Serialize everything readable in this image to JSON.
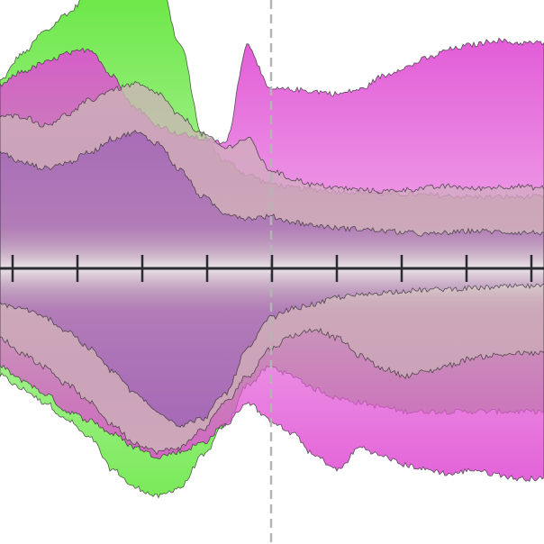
{
  "chart_data": {
    "type": "area",
    "title": "",
    "xlabel": "",
    "ylabel": "",
    "x": [
      0,
      25,
      50,
      75,
      100,
      125,
      150,
      175,
      200,
      225,
      250,
      275,
      300,
      325,
      350,
      375,
      400,
      425,
      450,
      475,
      500,
      525,
      550,
      575,
      600
    ],
    "xlim": [
      0,
      604
    ],
    "ylim": [
      -300,
      300
    ],
    "grid": false,
    "legend": "none",
    "marker_x": 301,
    "x_ticks": [
      14,
      86,
      158,
      230,
      302,
      374,
      446,
      518,
      590
    ],
    "series": [
      {
        "color": "#9b59b6",
        "upper": [
          130,
          118,
          112,
          118,
          130,
          145,
          152,
          140,
          110,
          80,
          62,
          56,
          58,
          52,
          48,
          45,
          44,
          42,
          40,
          38,
          40,
          42,
          41,
          40,
          40
        ],
        "lower": [
          -40,
          -45,
          -55,
          -70,
          -90,
          -115,
          -140,
          -160,
          -175,
          -168,
          -140,
          -90,
          -55,
          -45,
          -40,
          -32,
          -30,
          -27,
          -25,
          -24,
          -23,
          -22,
          -21,
          -20,
          -20
        ]
      },
      {
        "color": "#cdb4b8",
        "upper": [
          170,
          170,
          160,
          172,
          188,
          200,
          206,
          196,
          170,
          150,
          135,
          145,
          110,
          100,
          93,
          90,
          88,
          86,
          88,
          90,
          92,
          89,
          91,
          92,
          90
        ],
        "lower": [
          -78,
          -95,
          -110,
          -130,
          -150,
          -175,
          -195,
          -205,
          -200,
          -180,
          -150,
          -120,
          -90,
          -75,
          -68,
          -78,
          -98,
          -112,
          -120,
          -115,
          -108,
          -100,
          -97,
          -95,
          -95
        ]
      },
      {
        "color": "#e04fd4",
        "upper": [
          205,
          220,
          230,
          240,
          245,
          215,
          180,
          160,
          150,
          145,
          140,
          250,
          200,
          200,
          198,
          195,
          200,
          215,
          225,
          235,
          245,
          250,
          255,
          252,
          252
        ],
        "lower": [
          -110,
          -125,
          -140,
          -160,
          -170,
          -185,
          -200,
          -210,
          -205,
          -195,
          -175,
          -150,
          -170,
          -185,
          -210,
          -225,
          -200,
          -210,
          -220,
          -225,
          -230,
          -225,
          -230,
          -235,
          -235
        ]
      },
      {
        "color": "#6ee84a",
        "upper": [
          210,
          240,
          265,
          285,
          310,
          345,
          360,
          330,
          250,
          150,
          120,
          105,
          95,
          90,
          88,
          86,
          85,
          84,
          83,
          82,
          81,
          80,
          80,
          80,
          80
        ],
        "lower": [
          -120,
          -135,
          -150,
          -170,
          -190,
          -225,
          -245,
          -255,
          -245,
          -210,
          -175,
          -130,
          -110,
          -120,
          -135,
          -145,
          -150,
          -155,
          -160,
          -160,
          -160,
          -160,
          -160,
          -160,
          -160
        ]
      }
    ]
  }
}
